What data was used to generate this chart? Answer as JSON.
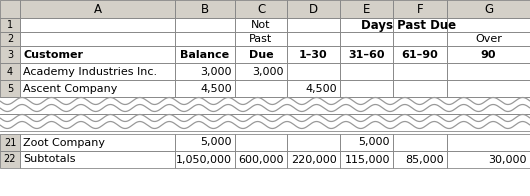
{
  "col_headers": [
    "A",
    "B",
    "C",
    "D",
    "E",
    "F",
    "G"
  ],
  "header_row3": [
    "Customer",
    "Balance",
    "Due",
    "1–30",
    "31–60",
    "61–90",
    "90"
  ],
  "data_rows_top": [
    [
      "Academy Industries Inc.",
      "3,000",
      "3,000",
      "",
      "",
      "",
      ""
    ],
    [
      "Ascent Company",
      "4,500",
      "",
      "4,500",
      "",
      "",
      ""
    ]
  ],
  "row_nums_top": [
    "4",
    "5"
  ],
  "data_rows_bottom": [
    [
      "Zoot Company",
      "5,000",
      "",
      "",
      "5,000",
      "",
      ""
    ],
    [
      "Subtotals",
      "1,050,000",
      "600,000",
      "220,000",
      "115,000",
      "85,000",
      "30,000"
    ]
  ],
  "row_nums_bottom": [
    "21",
    "22"
  ],
  "bg_color": "#ffffff",
  "header_bg": "#d4d0c8",
  "grid_color": "#888888",
  "wave_color": "#999999"
}
